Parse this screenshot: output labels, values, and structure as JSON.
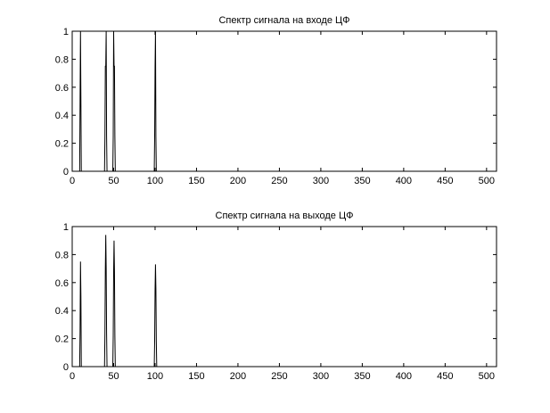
{
  "chart_data": [
    {
      "type": "line",
      "title": "Спектр сигнала на входе ЦФ",
      "xlabel": "",
      "ylabel": "",
      "xlim": [
        0,
        512
      ],
      "ylim": [
        0,
        1
      ],
      "xticks": [
        0,
        50,
        100,
        150,
        200,
        250,
        300,
        350,
        400,
        450,
        500
      ],
      "yticks": [
        0,
        0.2,
        0.4,
        0.6,
        0.8,
        1
      ],
      "ytick_labels": [
        "0",
        "0.2",
        "0.4",
        "0.6",
        "0.8",
        "1"
      ],
      "grid": false,
      "color": "#000000",
      "series": [
        {
          "points": [
            [
              0,
              0
            ],
            [
              9,
              0
            ],
            [
              9.5,
              0.5
            ],
            [
              10,
              1
            ],
            [
              10.5,
              0.5
            ],
            [
              11,
              0
            ],
            [
              39,
              0
            ],
            [
              39.5,
              0.25
            ],
            [
              40,
              0.75
            ],
            [
              40.5,
              0.75
            ],
            [
              41,
              1
            ],
            [
              41.5,
              0.25
            ],
            [
              42,
              0
            ],
            [
              49,
              0
            ],
            [
              49.5,
              0.25
            ],
            [
              50,
              1
            ],
            [
              50.5,
              0.75
            ],
            [
              51,
              0.75
            ],
            [
              51.5,
              0.25
            ],
            [
              52,
              0
            ],
            [
              99,
              0
            ],
            [
              99.5,
              0.25
            ],
            [
              100,
              0.75
            ],
            [
              100.5,
              1
            ],
            [
              101,
              0.25
            ],
            [
              101.5,
              0
            ],
            [
              512,
              0
            ]
          ]
        }
      ]
    },
    {
      "type": "line",
      "title": "Спектр сигнала на выходе ЦФ",
      "xlabel": "",
      "ylabel": "",
      "xlim": [
        0,
        512
      ],
      "ylim": [
        0,
        1
      ],
      "xticks": [
        0,
        50,
        100,
        150,
        200,
        250,
        300,
        350,
        400,
        450,
        500
      ],
      "yticks": [
        0,
        0.2,
        0.4,
        0.6,
        0.8,
        1
      ],
      "ytick_labels": [
        "0",
        "0.2",
        "0.4",
        "0.6",
        "0.8",
        "1"
      ],
      "grid": false,
      "color": "#000000",
      "series": [
        {
          "points": [
            [
              0,
              0
            ],
            [
              9,
              0
            ],
            [
              9.5,
              0.25
            ],
            [
              10,
              0.75
            ],
            [
              10.5,
              0.5
            ],
            [
              11,
              0
            ],
            [
              39,
              0
            ],
            [
              39.5,
              0.24
            ],
            [
              40,
              0.7
            ],
            [
              40.5,
              0.94
            ],
            [
              41,
              0.7
            ],
            [
              41.5,
              0.24
            ],
            [
              42,
              0
            ],
            [
              49,
              0
            ],
            [
              49.5,
              0.22
            ],
            [
              50,
              0.68
            ],
            [
              50.5,
              0.9
            ],
            [
              51,
              0.68
            ],
            [
              51.5,
              0.22
            ],
            [
              52,
              0
            ],
            [
              99,
              0
            ],
            [
              99.5,
              0.18
            ],
            [
              100,
              0.55
            ],
            [
              100.5,
              0.73
            ],
            [
              101,
              0.55
            ],
            [
              101.5,
              0.18
            ],
            [
              102,
              0
            ],
            [
              512,
              0
            ]
          ]
        }
      ]
    }
  ]
}
